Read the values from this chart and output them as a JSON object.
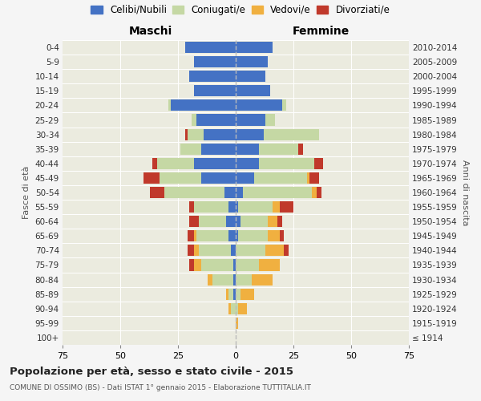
{
  "age_groups": [
    "100+",
    "95-99",
    "90-94",
    "85-89",
    "80-84",
    "75-79",
    "70-74",
    "65-69",
    "60-64",
    "55-59",
    "50-54",
    "45-49",
    "40-44",
    "35-39",
    "30-34",
    "25-29",
    "20-24",
    "15-19",
    "10-14",
    "5-9",
    "0-4"
  ],
  "birth_years": [
    "≤ 1914",
    "1915-1919",
    "1920-1924",
    "1925-1929",
    "1930-1934",
    "1935-1939",
    "1940-1944",
    "1945-1949",
    "1950-1954",
    "1955-1959",
    "1960-1964",
    "1965-1969",
    "1970-1974",
    "1975-1979",
    "1980-1984",
    "1985-1989",
    "1990-1994",
    "1995-1999",
    "2000-2004",
    "2005-2009",
    "2010-2014"
  ],
  "male": {
    "celibi": [
      0,
      0,
      0,
      1,
      1,
      1,
      2,
      3,
      4,
      3,
      5,
      15,
      18,
      15,
      14,
      17,
      28,
      18,
      20,
      18,
      22
    ],
    "coniugati": [
      0,
      0,
      2,
      2,
      9,
      14,
      14,
      14,
      12,
      15,
      26,
      18,
      16,
      9,
      7,
      2,
      1,
      0,
      0,
      0,
      0
    ],
    "vedovi": [
      0,
      0,
      1,
      1,
      2,
      3,
      2,
      1,
      0,
      0,
      0,
      0,
      0,
      0,
      0,
      0,
      0,
      0,
      0,
      0,
      0
    ],
    "divorziati": [
      0,
      0,
      0,
      0,
      0,
      2,
      3,
      3,
      4,
      2,
      6,
      7,
      2,
      0,
      1,
      0,
      0,
      0,
      0,
      0,
      0
    ]
  },
  "female": {
    "nubili": [
      0,
      0,
      0,
      0,
      0,
      0,
      0,
      1,
      2,
      1,
      3,
      8,
      10,
      10,
      12,
      13,
      20,
      15,
      13,
      14,
      16
    ],
    "coniugate": [
      0,
      0,
      1,
      2,
      7,
      10,
      13,
      13,
      12,
      15,
      30,
      23,
      24,
      17,
      24,
      4,
      2,
      0,
      0,
      0,
      0
    ],
    "vedove": [
      0,
      1,
      4,
      6,
      9,
      9,
      8,
      5,
      4,
      3,
      2,
      1,
      0,
      0,
      0,
      0,
      0,
      0,
      0,
      0,
      0
    ],
    "divorziate": [
      0,
      0,
      0,
      0,
      0,
      0,
      2,
      2,
      2,
      6,
      2,
      4,
      4,
      2,
      0,
      0,
      0,
      0,
      0,
      0,
      0
    ]
  },
  "colors": {
    "celibi": "#4472c4",
    "coniugati": "#c5d8a4",
    "vedovi": "#f0b040",
    "divorziati": "#c0392b"
  },
  "xlim": 75,
  "title": "Popolazione per età, sesso e stato civile - 2015",
  "subtitle": "COMUNE DI OSSIMO (BS) - Dati ISTAT 1° gennaio 2015 - Elaborazione TUTTITALIA.IT",
  "legend_labels": [
    "Celibi/Nubili",
    "Coniugati/e",
    "Vedovi/e",
    "Divorziati/e"
  ],
  "legend_colors": [
    "#4472c4",
    "#c5d8a4",
    "#f0b040",
    "#c0392b"
  ],
  "bg_color": "#f5f5f5",
  "plot_bg": "#ebebdf"
}
